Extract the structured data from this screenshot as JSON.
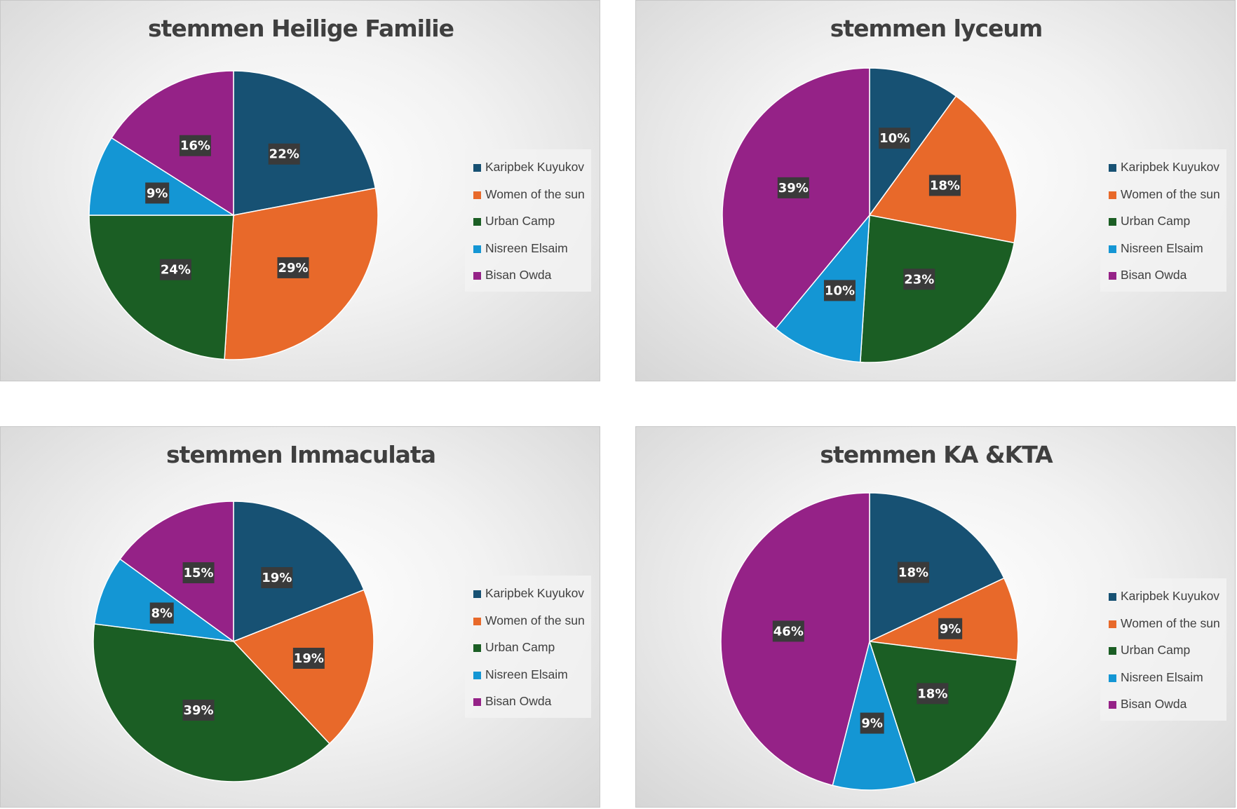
{
  "chart_data": [
    {
      "type": "pie",
      "title": "stemmen Heilige Familie",
      "categories": [
        "Karipbek Kuyukov",
        "Women of the sun",
        "Urban Camp",
        "Nisreen Elsaim",
        "Bisan Owda"
      ],
      "values": [
        22,
        29,
        24,
        9,
        16
      ],
      "labels": [
        "22%",
        "29%",
        "24%",
        "9%",
        "16%"
      ],
      "colors": [
        "#175173",
        "#e8692a",
        "#1b5e24",
        "#1496d4",
        "#952287"
      ],
      "legend": "right"
    },
    {
      "type": "pie",
      "title": "stemmen lyceum",
      "categories": [
        "Karipbek Kuyukov",
        "Women of the sun",
        "Urban Camp",
        "Nisreen Elsaim",
        "Bisan Owda"
      ],
      "values": [
        10,
        18,
        23,
        10,
        39
      ],
      "labels": [
        "10%",
        "18%",
        "23%",
        "10%",
        "39%"
      ],
      "colors": [
        "#175173",
        "#e8692a",
        "#1b5e24",
        "#1496d4",
        "#952287"
      ],
      "legend": "right"
    },
    {
      "type": "pie",
      "title": "stemmen Immaculata",
      "categories": [
        "Karipbek Kuyukov",
        "Women of the sun",
        "Urban Camp",
        "Nisreen Elsaim",
        "Bisan Owda"
      ],
      "values": [
        19,
        19,
        39,
        8,
        15
      ],
      "labels": [
        "19%",
        "19%",
        "39%",
        "8%",
        "15%"
      ],
      "colors": [
        "#175173",
        "#e8692a",
        "#1b5e24",
        "#1496d4",
        "#952287"
      ],
      "legend": "right"
    },
    {
      "type": "pie",
      "title": "stemmen KA &KTA",
      "categories": [
        "Karipbek Kuyukov",
        "Women of the sun",
        "Urban Camp",
        "Nisreen Elsaim",
        "Bisan Owda"
      ],
      "values": [
        18,
        9,
        18,
        9,
        46
      ],
      "labels": [
        "18%",
        "9%",
        "18%",
        "9%",
        "46%"
      ],
      "colors": [
        "#175173",
        "#e8692a",
        "#1b5e24",
        "#1496d4",
        "#952287"
      ],
      "legend": "right"
    }
  ]
}
